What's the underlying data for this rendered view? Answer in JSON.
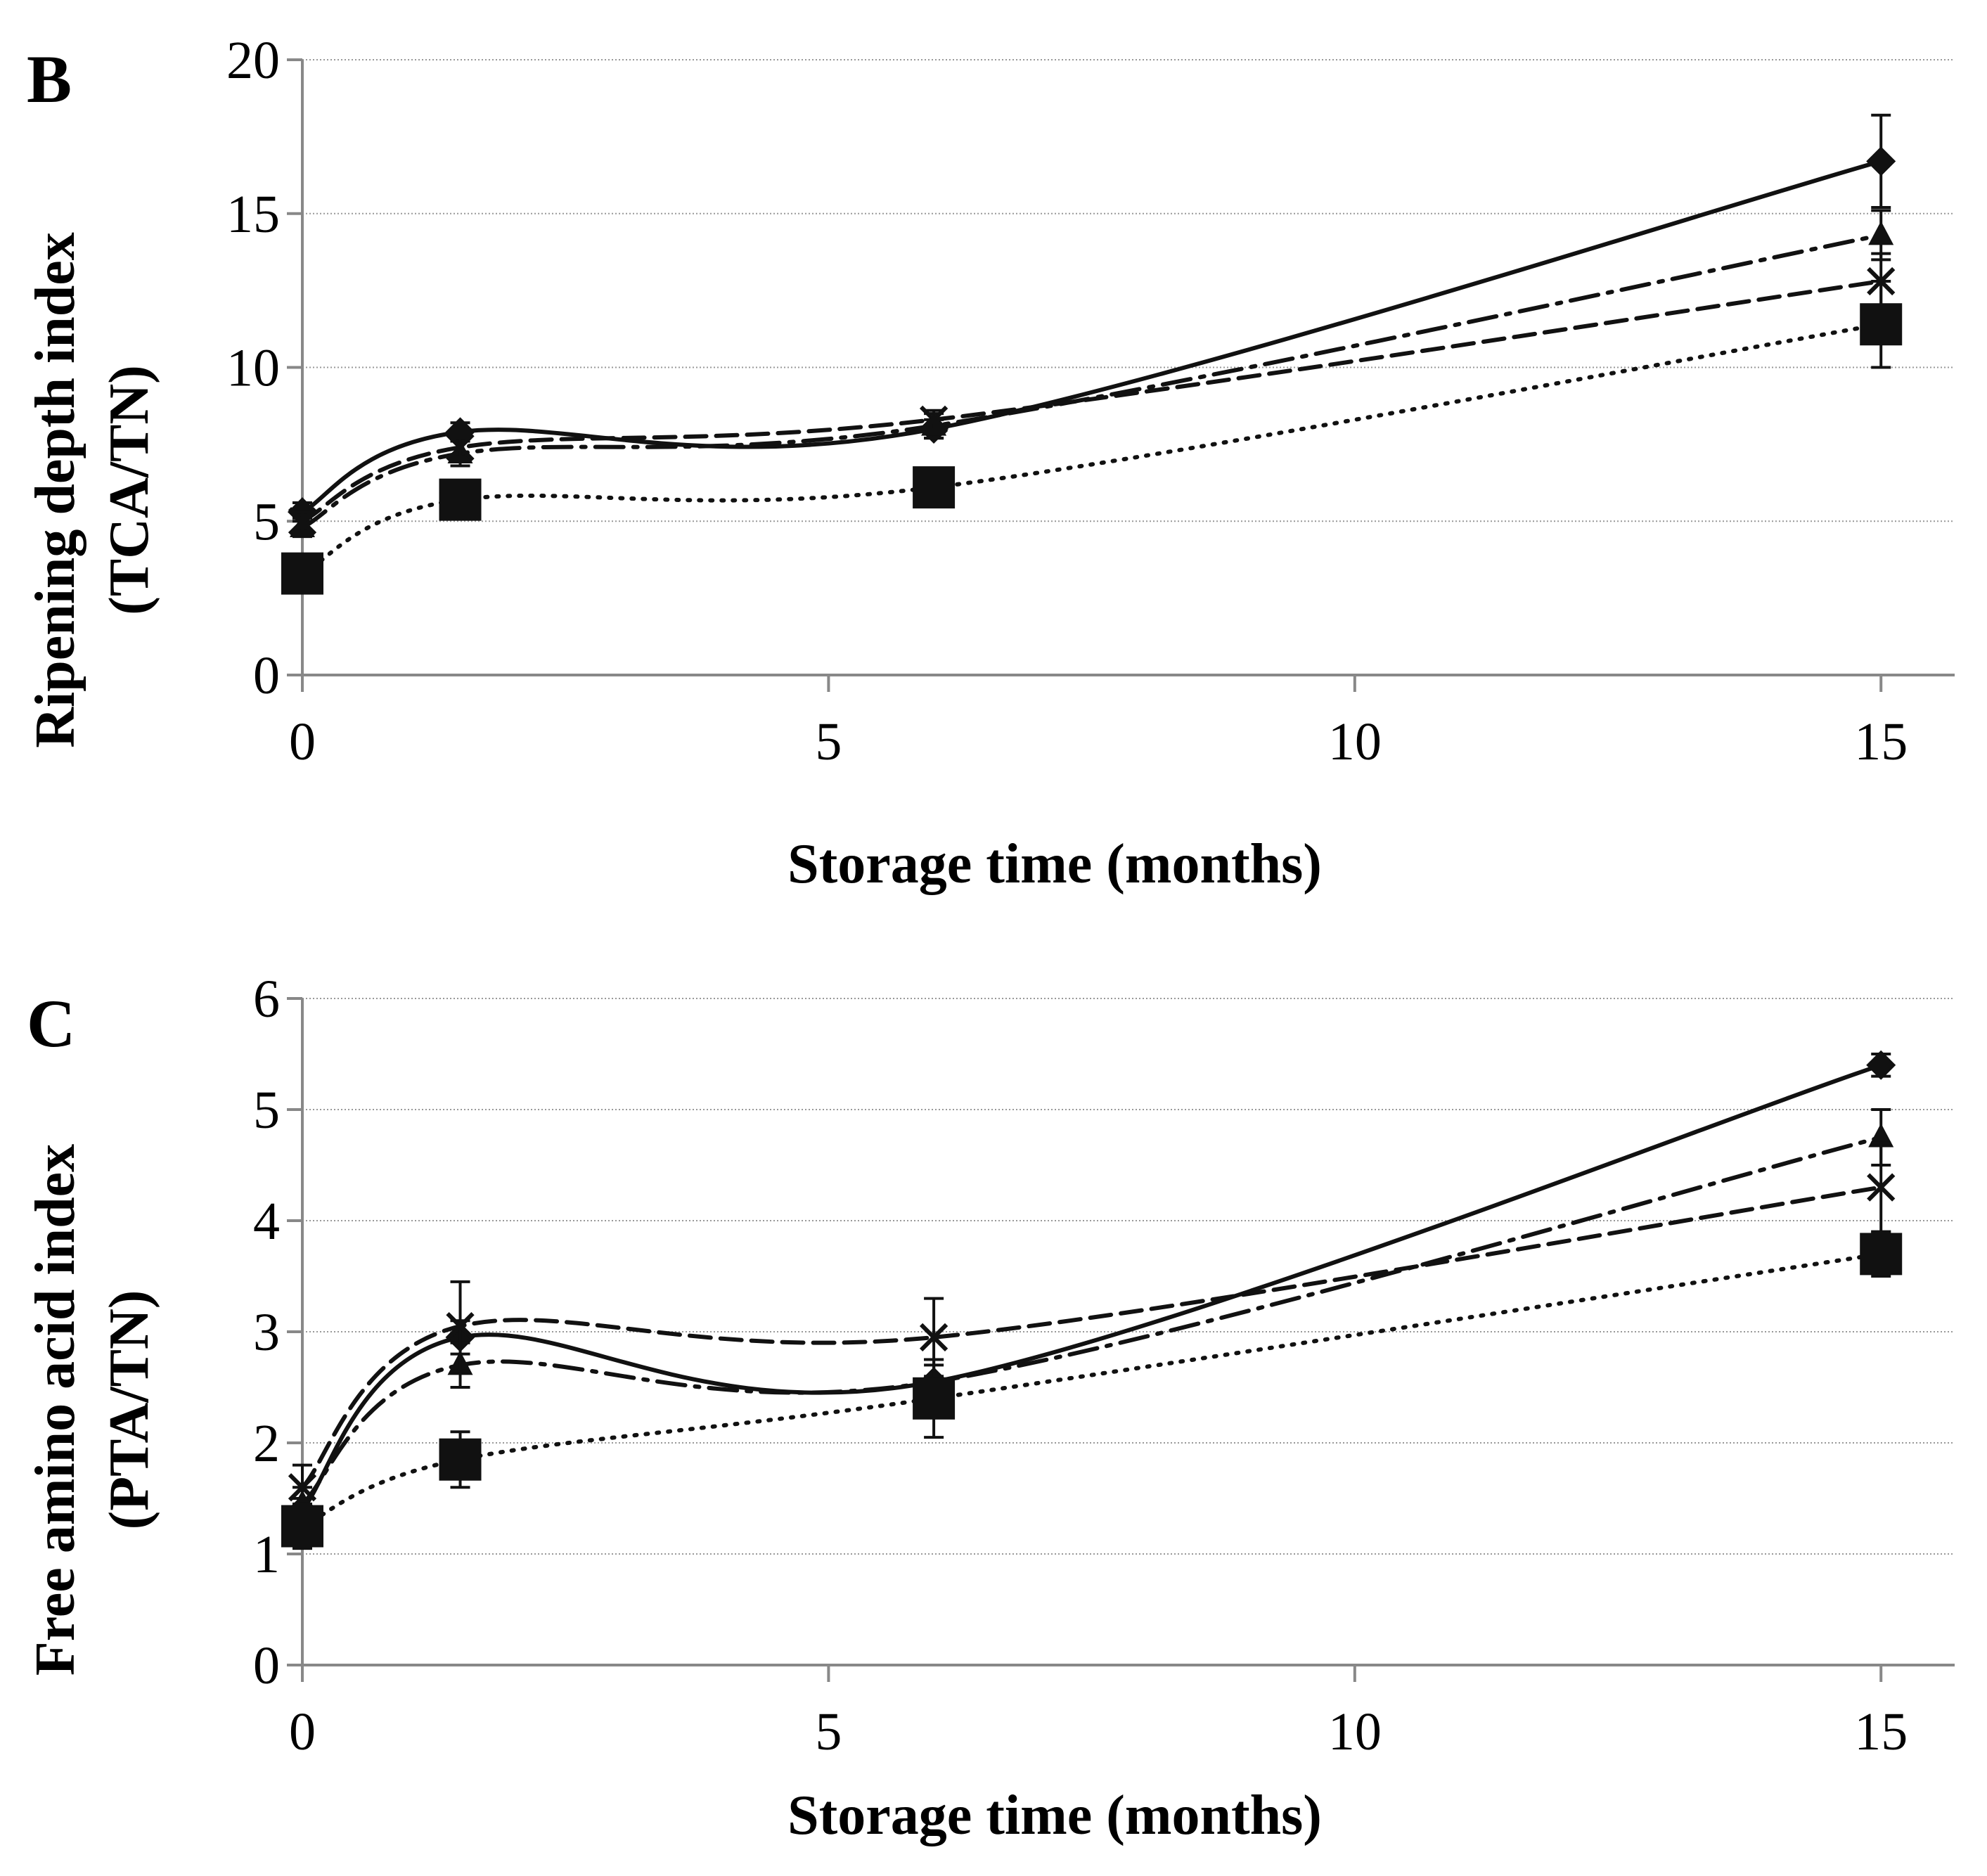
{
  "chart_data": [
    {
      "type": "line",
      "panel_label": "B",
      "xlabel": "Storage time (months)",
      "ylabel_line1": "Ripening depth index",
      "ylabel_line2": "(TCA/TN)",
      "xlim": [
        0,
        15.7
      ],
      "ylim": [
        0,
        20
      ],
      "xticks": [
        0,
        5,
        10,
        15
      ],
      "yticks": [
        0,
        5,
        10,
        15,
        20
      ],
      "grid": true,
      "x": [
        0,
        1.5,
        6,
        15
      ],
      "series": [
        {
          "name": "diamond-solid",
          "marker": "diamond",
          "line": "solid",
          "values": [
            5.3,
            7.9,
            8.0,
            16.7
          ],
          "errors": [
            0.3,
            0.3,
            0.3,
            1.5
          ]
        },
        {
          "name": "triangle-dashdot",
          "marker": "triangle",
          "line": "dashdot",
          "values": [
            4.8,
            7.2,
            8.1,
            14.3
          ],
          "errors": [
            0.3,
            0.4,
            0.4,
            0.8
          ]
        },
        {
          "name": "cross-dashed",
          "marker": "cross",
          "line": "dashed",
          "values": [
            5.0,
            7.4,
            8.3,
            12.8
          ],
          "errors": [
            0.3,
            0.3,
            0.3,
            0.9
          ]
        },
        {
          "name": "square-dotted",
          "marker": "square",
          "line": "dotted",
          "values": [
            3.3,
            5.7,
            6.1,
            11.4
          ],
          "errors": [
            0.5,
            0.4,
            0.3,
            1.4
          ]
        }
      ]
    },
    {
      "type": "line",
      "panel_label": "C",
      "xlabel": "Storage time (months)",
      "ylabel_line1": "Free amino acid index",
      "ylabel_line2": "(PTA/TN)",
      "xlim": [
        0,
        15.7
      ],
      "ylim": [
        0,
        6
      ],
      "xticks": [
        0,
        5,
        10,
        15
      ],
      "yticks": [
        0,
        1,
        2,
        3,
        4,
        5,
        6
      ],
      "grid": true,
      "x": [
        0,
        1.5,
        6,
        15
      ],
      "series": [
        {
          "name": "diamond-solid",
          "marker": "diamond",
          "line": "solid",
          "values": [
            1.4,
            2.95,
            2.55,
            5.4
          ],
          "errors": [
            0.1,
            0.15,
            0.15,
            0.1
          ]
        },
        {
          "name": "triangle-dashdot",
          "marker": "triangle",
          "line": "dashdot",
          "values": [
            1.45,
            2.7,
            2.55,
            4.75
          ],
          "errors": [
            0.15,
            0.2,
            0.2,
            0.25
          ]
        },
        {
          "name": "cross-dashed",
          "marker": "cross",
          "line": "dashed",
          "values": [
            1.6,
            3.05,
            2.95,
            4.3
          ],
          "errors": [
            0.2,
            0.4,
            0.35,
            0.4
          ]
        },
        {
          "name": "square-dotted",
          "marker": "square",
          "line": "dotted",
          "values": [
            1.25,
            1.85,
            2.4,
            3.7
          ],
          "errors": [
            0.2,
            0.25,
            0.35,
            0.2
          ]
        }
      ]
    }
  ]
}
